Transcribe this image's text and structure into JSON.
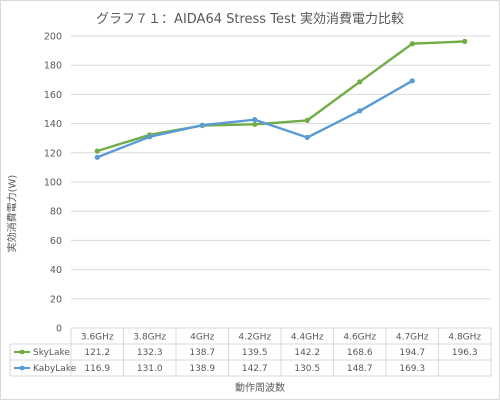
{
  "chart_data": {
    "type": "line",
    "title": "グラフ７１：AIDA64 Stress Test 実効消費電力比較",
    "xlabel": "動作周波数",
    "ylabel": "実効消費電力(W)",
    "ylim": [
      0,
      200
    ],
    "yticks": [
      0,
      20,
      40,
      60,
      80,
      100,
      120,
      140,
      160,
      180,
      200
    ],
    "grid": true,
    "legend": "data-table",
    "categories": [
      "3.6GHz",
      "3.8GHz",
      "4GHz",
      "4.2GHz",
      "4.4GHz",
      "4.6GHz",
      "4.7GHz",
      "4.8GHz"
    ],
    "series": [
      {
        "name": "SkyLake",
        "color": "#70ad47",
        "values": [
          121.2,
          132.3,
          138.7,
          139.5,
          142.2,
          168.6,
          194.7,
          196.3
        ],
        "labels": [
          "121.2",
          "132.3",
          "138.7",
          "139.5",
          "142.2",
          "168.6",
          "194.7",
          "196.3"
        ]
      },
      {
        "name": "KabyLake",
        "color": "#5b9bd5",
        "values": [
          116.9,
          131.0,
          138.9,
          142.7,
          130.5,
          148.7,
          169.3,
          null
        ],
        "labels": [
          "116.9",
          "131.0",
          "138.9",
          "142.7",
          "130.5",
          "148.7",
          "169.3",
          ""
        ]
      }
    ]
  }
}
